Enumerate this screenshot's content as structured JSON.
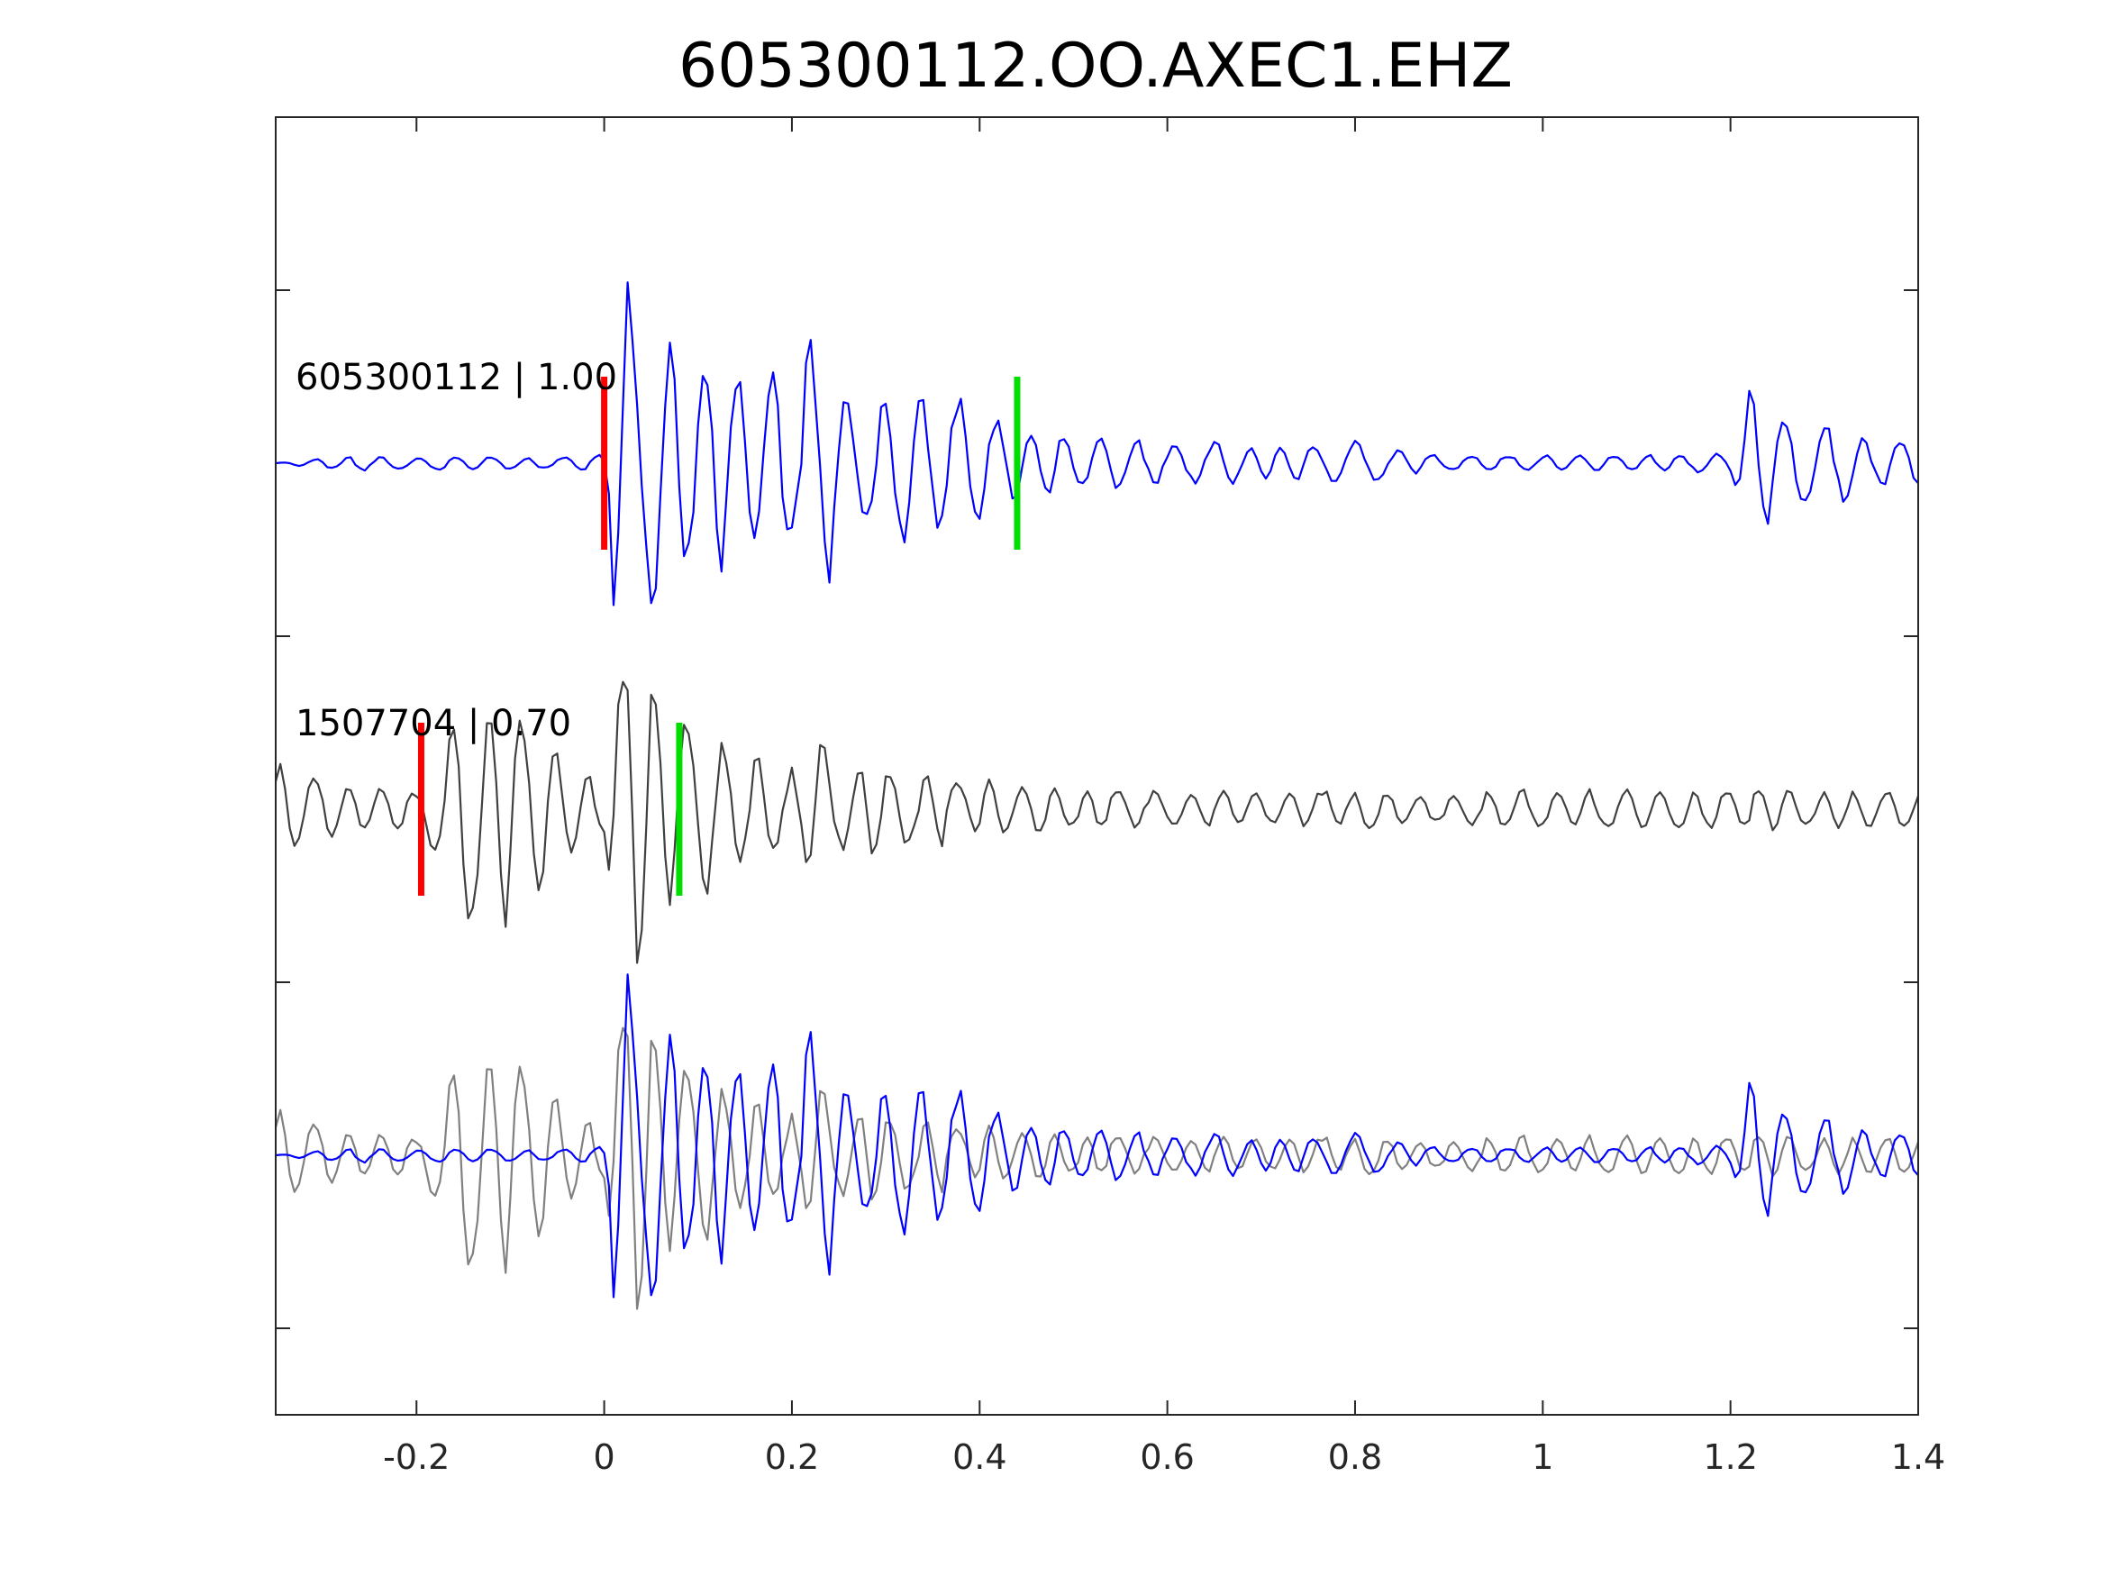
{
  "chart_data": {
    "type": "line",
    "title": "605300112.OO.AXEC1.EHZ",
    "xlabel": "",
    "ylabel": "",
    "xlim": [
      -0.35,
      1.4
    ],
    "ylim": [
      0,
      7.5
    ],
    "xticks": [
      -0.2,
      0,
      0.2,
      0.4,
      0.6,
      0.8,
      1,
      1.2,
      1.4
    ],
    "xtick_labels": [
      "-0.2",
      "0",
      "0.2",
      "0.4",
      "0.6",
      "0.8",
      "1",
      "1.2",
      "1.4"
    ],
    "yticks": [
      0.5,
      2.5,
      4.5,
      6.5
    ],
    "grid": false,
    "traces": [
      {
        "label": "605300112 | 1.00",
        "baseline": 5.5,
        "color": "#0000ff",
        "amp_scale": 1.0,
        "picks": [
          {
            "x": 0.0,
            "color": "#ff0000"
          },
          {
            "x": 0.44,
            "color": "#00dd00"
          }
        ]
      },
      {
        "label": "1507704 | 0.70",
        "baseline": 3.5,
        "color": "#404040",
        "amp_scale": 1.0,
        "picks": [
          {
            "x": -0.195,
            "color": "#ff0000"
          },
          {
            "x": 0.08,
            "color": "#00dd00"
          }
        ]
      }
    ],
    "overlay": {
      "baseline": 1.5,
      "series": [
        {
          "source": 1,
          "color": "#808080",
          "shift": 0.0
        },
        {
          "source": 0,
          "color": "#0000ff",
          "shift": 0.0
        }
      ]
    },
    "waveform_x": [
      -0.35,
      -0.3,
      -0.25,
      -0.2,
      -0.15,
      -0.1,
      -0.05,
      0.0,
      0.01,
      0.025,
      0.04,
      0.055,
      0.07,
      0.085,
      0.1,
      0.12,
      0.14,
      0.16,
      0.18,
      0.2,
      0.23,
      0.25,
      0.28,
      0.32,
      0.36,
      0.38,
      0.41,
      0.44,
      0.47,
      0.5,
      0.55,
      0.6,
      0.65,
      0.7,
      0.75,
      0.8,
      0.85,
      0.9,
      0.95,
      1.0,
      1.05,
      1.1,
      1.15,
      1.2,
      1.22,
      1.24,
      1.26,
      1.28,
      1.3,
      1.32,
      1.35,
      1.38,
      1.4
    ],
    "waveform_a": [
      0.0,
      0.03,
      0.04,
      0.03,
      0.04,
      0.03,
      0.03,
      0.05,
      0.75,
      1.1,
      0.8,
      0.85,
      0.75,
      0.6,
      0.55,
      0.55,
      0.5,
      0.45,
      0.5,
      0.45,
      0.75,
      0.5,
      0.35,
      0.4,
      0.35,
      0.35,
      0.25,
      0.2,
      0.18,
      0.15,
      0.14,
      0.1,
      0.12,
      0.08,
      0.1,
      0.12,
      0.06,
      0.04,
      0.04,
      0.04,
      0.04,
      0.04,
      0.05,
      0.05,
      0.4,
      0.35,
      0.25,
      0.25,
      0.25,
      0.2,
      0.15,
      0.12,
      0.1
    ],
    "waveform_b": [
      0.25,
      0.15,
      0.12,
      0.1,
      0.65,
      0.6,
      0.3,
      0.15,
      0.6,
      0.95,
      0.8,
      0.6,
      0.5,
      0.45,
      0.45,
      0.45,
      0.35,
      0.3,
      0.25,
      0.25,
      0.35,
      0.25,
      0.25,
      0.2,
      0.2,
      0.15,
      0.15,
      0.12,
      0.12,
      0.1,
      0.1,
      0.1,
      0.1,
      0.08,
      0.1,
      0.1,
      0.08,
      0.08,
      0.1,
      0.1,
      0.1,
      0.12,
      0.1,
      0.1,
      0.12,
      0.12,
      0.1,
      0.1,
      0.1,
      0.1,
      0.1,
      0.1,
      0.1
    ]
  }
}
